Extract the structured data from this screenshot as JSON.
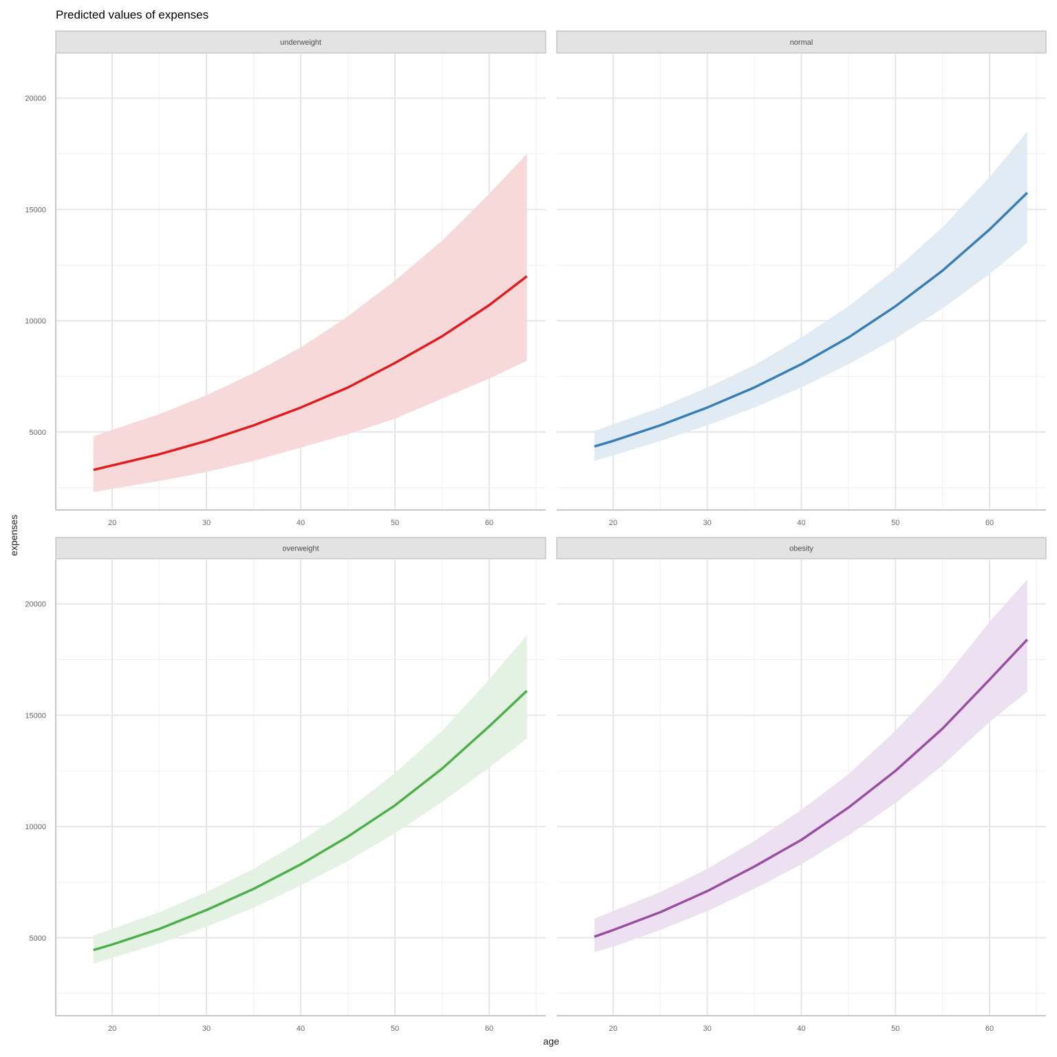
{
  "chart_data": {
    "type": "line",
    "title": "Predicted values of expenses",
    "xlabel": "age",
    "ylabel": "expenses",
    "xlim": [
      14,
      66
    ],
    "ylim": [
      1500,
      22000
    ],
    "x_ticks": [
      20,
      30,
      40,
      50,
      60
    ],
    "y_ticks": [
      5000,
      10000,
      15000,
      20000
    ],
    "grid": true,
    "legend": "none",
    "x": [
      18,
      20,
      25,
      30,
      35,
      40,
      45,
      50,
      55,
      60,
      64
    ],
    "panels": [
      {
        "name": "underweight",
        "color": "#e41a1c",
        "fill": "#f7d7d8",
        "predicted": [
          3300,
          3500,
          4000,
          4600,
          5300,
          6100,
          7000,
          8100,
          9300,
          10700,
          12000
        ],
        "ci_low": [
          2300,
          2450,
          2800,
          3200,
          3700,
          4300,
          4900,
          5600,
          6500,
          7400,
          8200
        ],
        "ci_high": [
          4800,
          5100,
          5800,
          6650,
          7650,
          8800,
          10200,
          11800,
          13600,
          15700,
          17500
        ]
      },
      {
        "name": "normal",
        "color": "#377eb8",
        "fill": "#dfeaf3",
        "predicted": [
          4350,
          4600,
          5300,
          6100,
          7000,
          8050,
          9250,
          10650,
          12250,
          14100,
          15750
        ],
        "ci_low": [
          3700,
          3950,
          4600,
          5300,
          6100,
          7000,
          8050,
          9200,
          10550,
          12100,
          13500
        ],
        "ci_high": [
          5050,
          5350,
          6100,
          7000,
          8000,
          9250,
          10650,
          12300,
          14200,
          16450,
          18500
        ]
      },
      {
        "name": "overweight",
        "color": "#4daf4a",
        "fill": "#e1f1e0",
        "predicted": [
          4450,
          4700,
          5400,
          6250,
          7200,
          8300,
          9550,
          10950,
          12600,
          14500,
          16100
        ],
        "ci_low": [
          3850,
          4100,
          4750,
          5500,
          6350,
          7350,
          8450,
          9700,
          11100,
          12650,
          13950
        ],
        "ci_high": [
          5100,
          5400,
          6150,
          7050,
          8100,
          9350,
          10750,
          12400,
          14300,
          16600,
          18600
        ]
      },
      {
        "name": "obesity",
        "color": "#984ea3",
        "fill": "#ecdff0",
        "predicted": [
          5050,
          5350,
          6150,
          7100,
          8200,
          9400,
          10850,
          12500,
          14400,
          16600,
          18400
        ],
        "ci_low": [
          4350,
          4600,
          5350,
          6200,
          7200,
          8300,
          9600,
          11050,
          12750,
          14700,
          16050
        ],
        "ci_high": [
          5850,
          6200,
          7050,
          8100,
          9350,
          10750,
          12350,
          14300,
          16550,
          19200,
          21100
        ]
      }
    ]
  }
}
